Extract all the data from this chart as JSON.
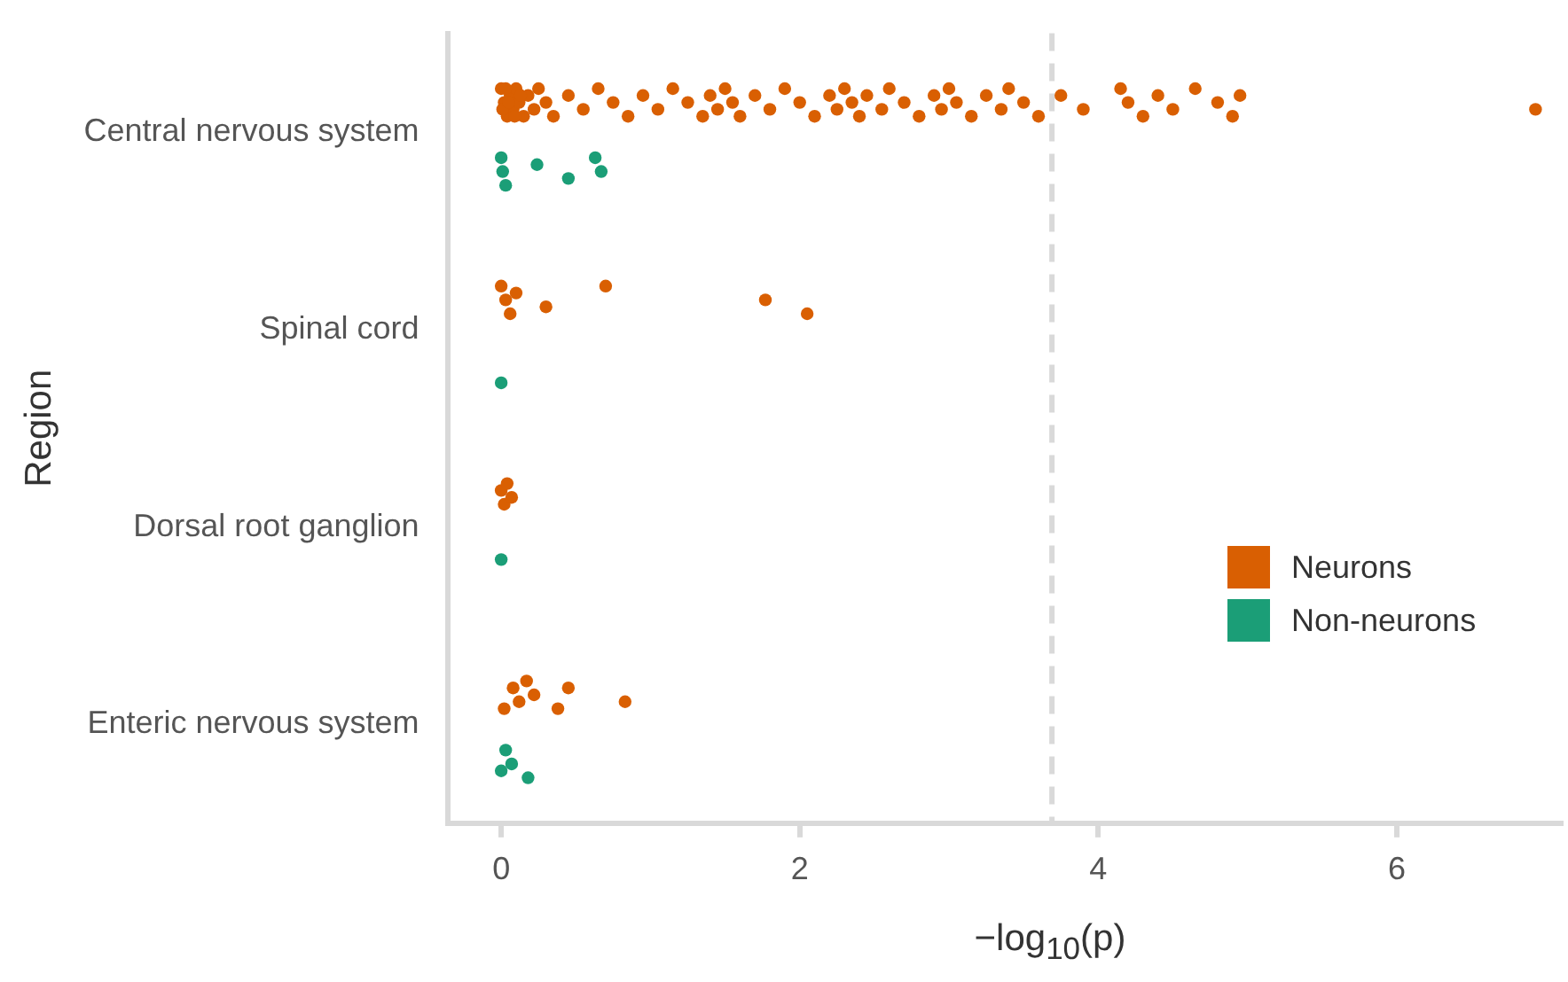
{
  "chart_data": {
    "type": "scatter",
    "orientation": "horizontal",
    "xlabel": "−log$_{10}$(p)",
    "ylabel": "Region",
    "categories": [
      "Central nervous system",
      "Spinal cord",
      "Dorsal root ganglion",
      "Enteric nervous system"
    ],
    "xlim": [
      -0.36,
      7.1
    ],
    "xticks": [
      0,
      2,
      4,
      6
    ],
    "grid": false,
    "legend": "right",
    "marker": "circle",
    "ref_lines": [
      {
        "axis": "x",
        "value": 3.69,
        "color": "#d9d9d9",
        "line_style": "dashed"
      }
    ],
    "series": [
      {
        "name": "Neurons",
        "color": "#d95f02",
        "x": [
          "Central nervous system",
          "Central nervous system",
          "Central nervous system",
          "Central nervous system",
          "Central nervous system",
          "Central nervous system",
          "Central nervous system",
          "Central nervous system",
          "Central nervous system",
          "Central nervous system",
          "Central nervous system",
          "Central nervous system",
          "Central nervous system",
          "Central nervous system",
          "Central nervous system",
          "Central nervous system",
          "Central nervous system",
          "Central nervous system",
          "Central nervous system",
          "Central nervous system",
          "Central nervous system",
          "Central nervous system",
          "Central nervous system",
          "Central nervous system",
          "Central nervous system",
          "Central nervous system",
          "Central nervous system",
          "Central nervous system",
          "Central nervous system",
          "Central nervous system",
          "Central nervous system",
          "Central nervous system",
          "Central nervous system",
          "Central nervous system",
          "Central nervous system",
          "Central nervous system",
          "Central nervous system",
          "Central nervous system",
          "Central nervous system",
          "Central nervous system",
          "Central nervous system",
          "Central nervous system",
          "Central nervous system",
          "Central nervous system",
          "Central nervous system",
          "Central nervous system",
          "Central nervous system",
          "Central nervous system",
          "Central nervous system",
          "Central nervous system",
          "Central nervous system",
          "Central nervous system",
          "Central nervous system",
          "Central nervous system",
          "Central nervous system",
          "Central nervous system",
          "Central nervous system",
          "Central nervous system",
          "Central nervous system",
          "Central nervous system",
          "Central nervous system",
          "Central nervous system",
          "Central nervous system",
          "Central nervous system",
          "Central nervous system",
          "Central nervous system",
          "Central nervous system",
          "Central nervous system",
          "Central nervous system",
          "Central nervous system",
          "Spinal cord",
          "Spinal cord",
          "Spinal cord",
          "Spinal cord",
          "Spinal cord",
          "Spinal cord",
          "Spinal cord",
          "Spinal cord",
          "Dorsal root ganglion",
          "Dorsal root ganglion",
          "Dorsal root ganglion",
          "Dorsal root ganglion",
          "Enteric nervous system",
          "Enteric nervous system",
          "Enteric nervous system",
          "Enteric nervous system",
          "Enteric nervous system",
          "Enteric nervous system",
          "Enteric nervous system",
          "Enteric nervous system"
        ],
        "values": [
          0,
          0.02,
          0.04,
          0.06,
          0.08,
          0.1,
          0.12,
          0.15,
          0.18,
          0.22,
          0.25,
          0.3,
          0.35,
          0.45,
          0.55,
          0.65,
          0.75,
          0.85,
          0.95,
          1.05,
          1.15,
          1.25,
          1.35,
          1.4,
          1.45,
          1.5,
          1.55,
          1.6,
          1.7,
          1.8,
          1.9,
          2.0,
          2.1,
          2.2,
          2.25,
          2.3,
          2.35,
          2.4,
          2.45,
          2.55,
          2.6,
          2.7,
          2.8,
          2.9,
          2.95,
          3.0,
          3.05,
          3.15,
          3.25,
          3.35,
          3.4,
          3.5,
          3.6,
          3.75,
          3.9,
          4.15,
          4.2,
          4.3,
          4.4,
          4.5,
          4.65,
          4.8,
          4.9,
          4.95,
          0.01,
          0.03,
          0.05,
          0.09,
          0.13,
          6.93,
          0,
          0.03,
          0.06,
          0.1,
          0.3,
          0.7,
          1.77,
          2.05,
          0,
          0.02,
          0.04,
          0.07,
          0.02,
          0.08,
          0.12,
          0.17,
          0.22,
          0.38,
          0.45,
          0.83
        ]
      },
      {
        "name": "Non-neurons",
        "color": "#1b9e77",
        "x": [
          "Central nervous system",
          "Central nervous system",
          "Central nervous system",
          "Central nervous system",
          "Central nervous system",
          "Central nervous system",
          "Central nervous system",
          "Spinal cord",
          "Dorsal root ganglion",
          "Enteric nervous system",
          "Enteric nervous system",
          "Enteric nervous system",
          "Enteric nervous system"
        ],
        "values": [
          0,
          0.01,
          0.03,
          0.24,
          0.45,
          0.63,
          0.67,
          0,
          0,
          0,
          0.03,
          0.07,
          0.18
        ]
      }
    ]
  }
}
